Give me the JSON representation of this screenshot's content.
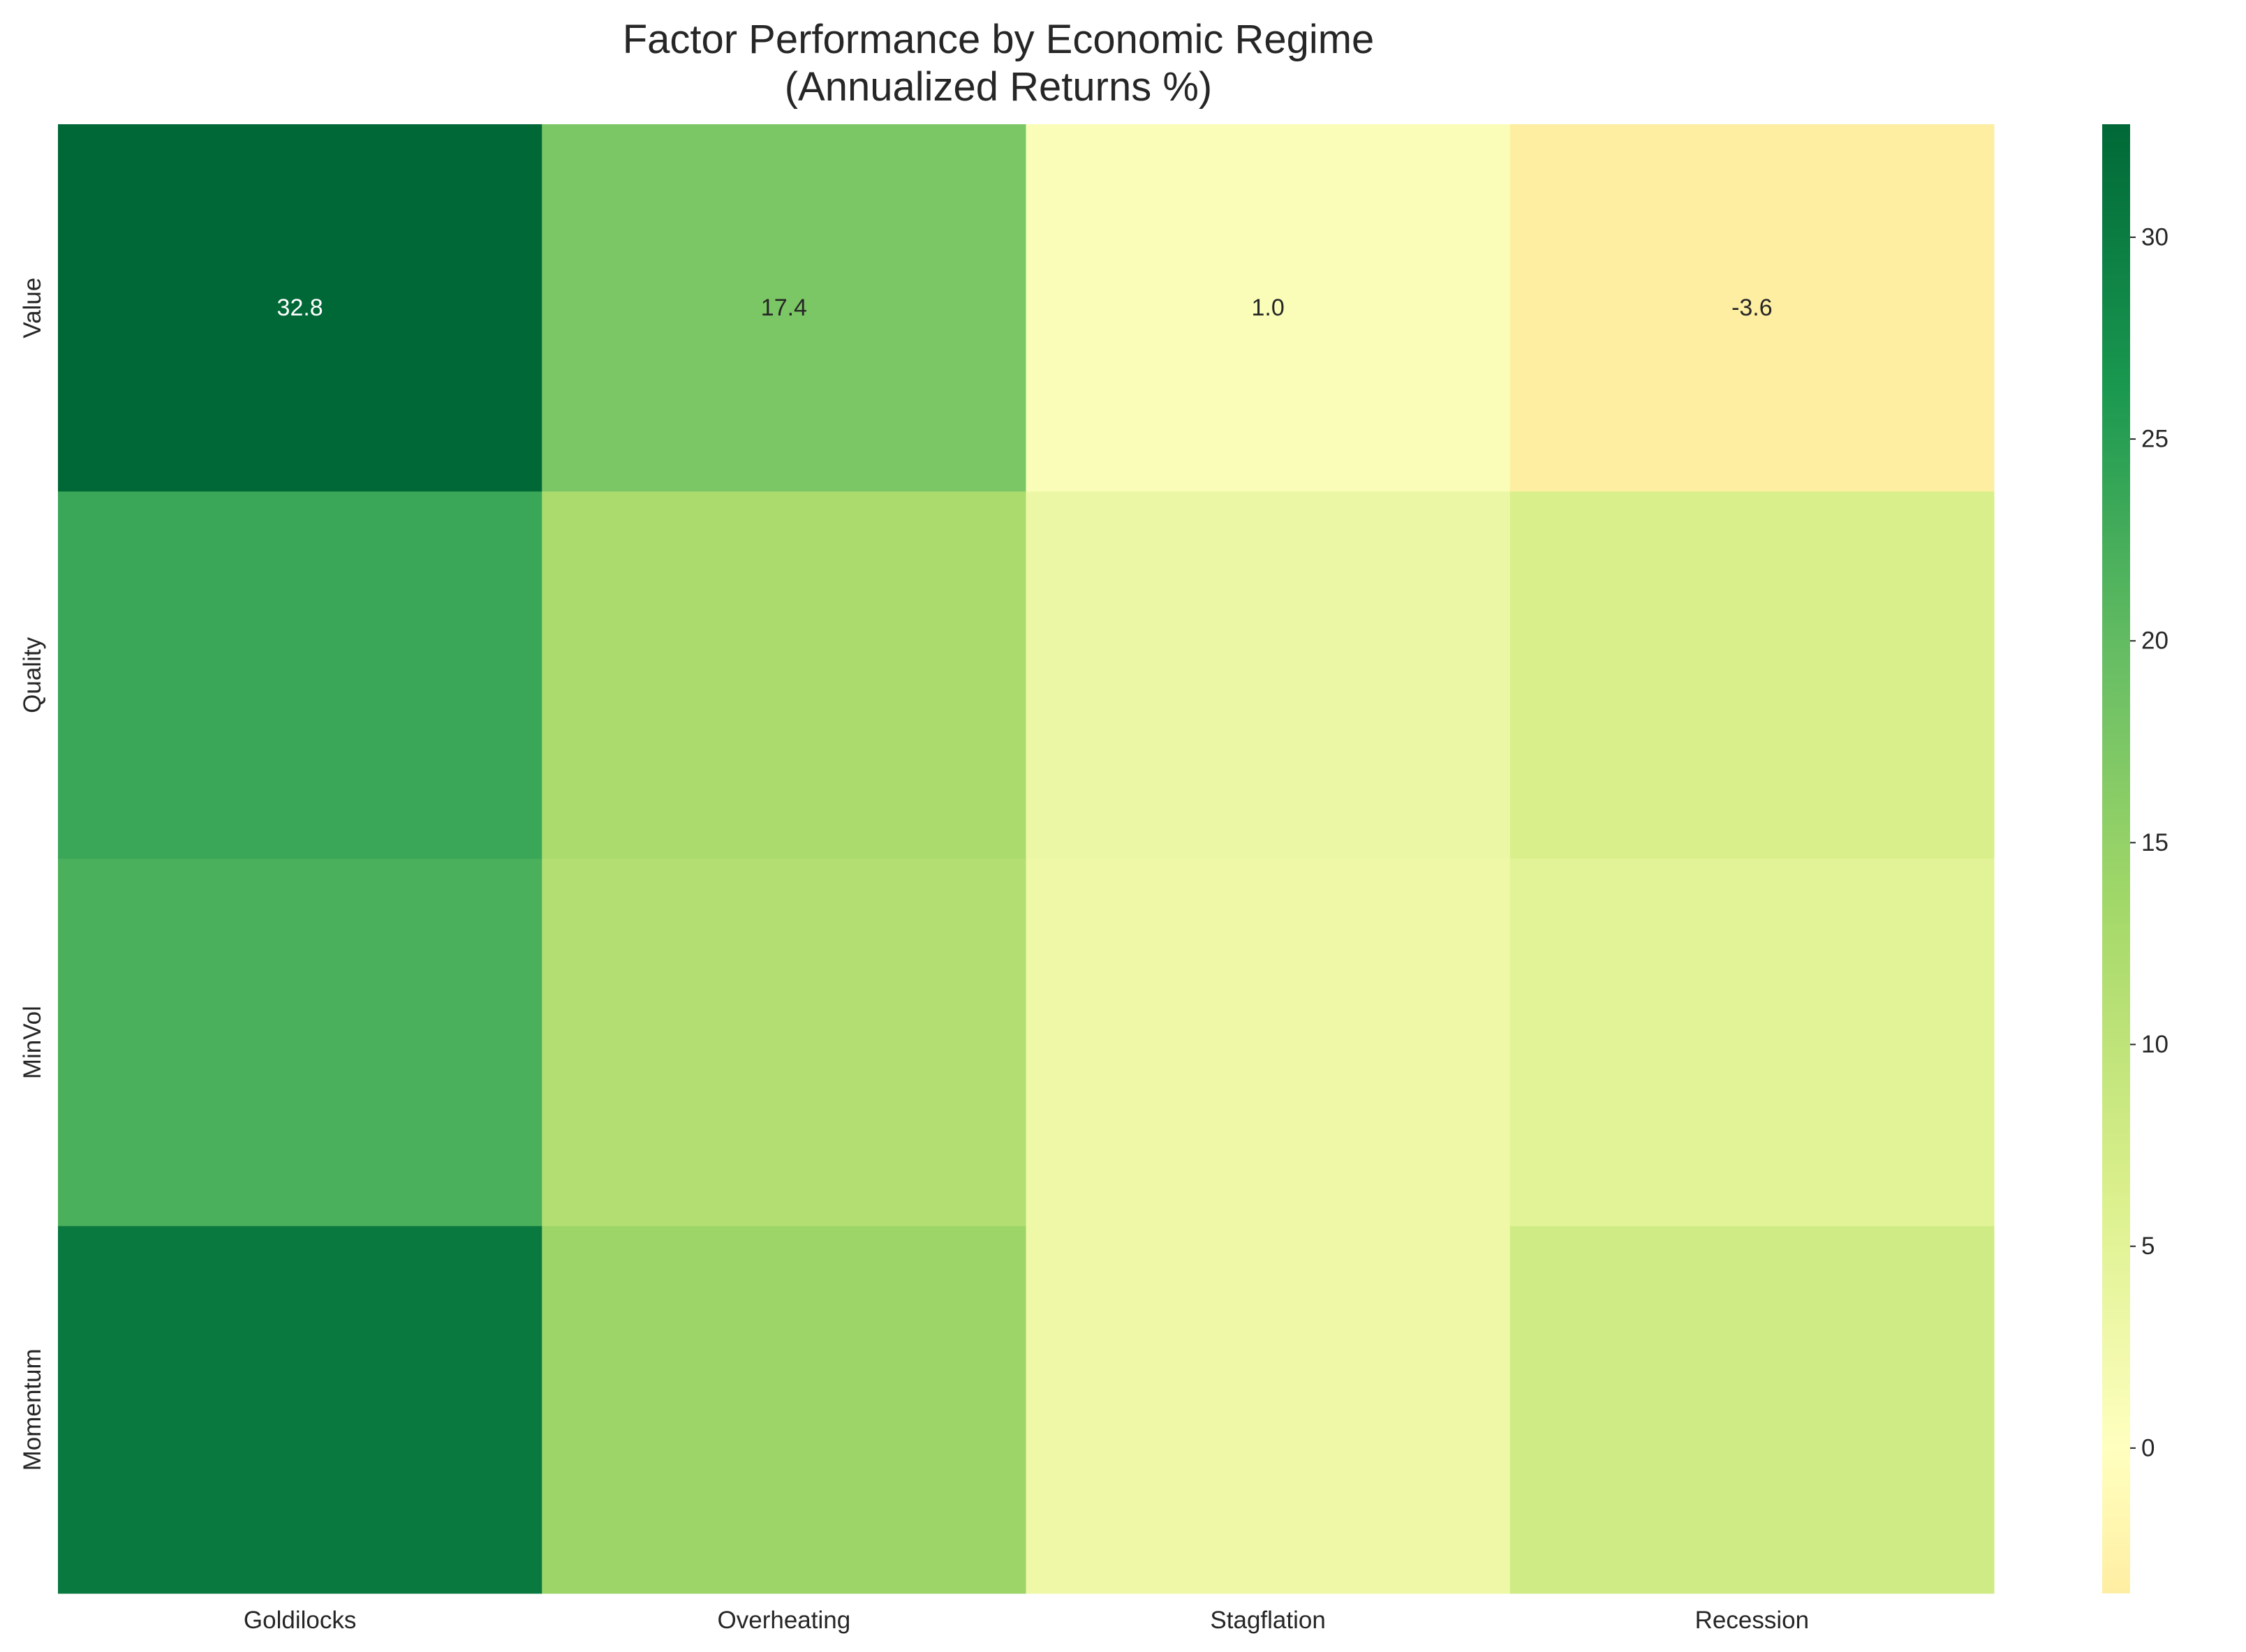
{
  "chart_data": {
    "type": "heatmap",
    "title_line1": "Factor Performance by Economic Regime",
    "title_line2": "(Annualized Returns %)",
    "xlabel": "",
    "ylabel": "",
    "x_categories": [
      "Goldilocks",
      "Overheating",
      "Stagflation",
      "Recession"
    ],
    "y_categories": [
      "Value",
      "Quality",
      "MinVol",
      "Momentum"
    ],
    "values": [
      [
        32.8,
        17.4,
        1.0,
        -3.6
      ],
      [
        23.5,
        12.5,
        3.2,
        6.5
      ],
      [
        22.0,
        11.5,
        3.0,
        5.0
      ],
      [
        30.5,
        14.0,
        3.0,
        7.8
      ]
    ],
    "annotations": [
      [
        [
          "32.8",
          0,
          0
        ],
        [
          "17.4",
          0,
          1
        ],
        [
          "1.0",
          0,
          2
        ],
        [
          "-3.6",
          0,
          3
        ]
      ]
    ],
    "colormap": "RdYlGn",
    "vmin": -3.6,
    "vmax": 32.8,
    "colorbar_ticks": [
      0,
      5,
      10,
      15,
      20,
      25,
      30
    ],
    "grid": false
  }
}
